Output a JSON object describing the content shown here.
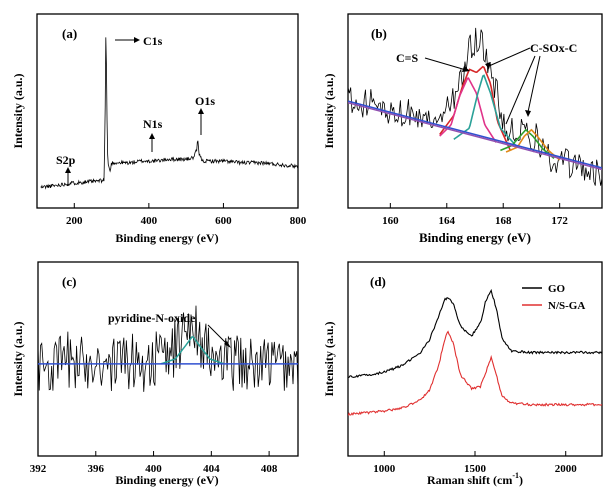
{
  "colors": {
    "axis": "#000000",
    "raw": "#000000",
    "fit_pink": "#e0338a",
    "fit_red": "#d62728",
    "fit_teal": "#2aa198",
    "fit_green": "#2ca02c",
    "fit_orange": "#e08a1a",
    "baseline_blue": "#3050d0",
    "baseline_purple": "#9050b0",
    "go": "#000000",
    "nsga": "#e03030"
  },
  "chart_data": [
    {
      "id": "a",
      "type": "line",
      "panel_label": "(a)",
      "xlabel": "Binding energy (eV)",
      "ylabel": "Intensity (a.u.)",
      "xlim": [
        100,
        800
      ],
      "xticks": [
        "200",
        "400",
        "600",
        "800"
      ],
      "xtick_values": [
        200,
        400,
        600,
        800
      ],
      "ylim": [
        0,
        100
      ],
      "series": [
        {
          "x": [
            110,
            150,
            180,
            200,
            230,
            260,
            280,
            283,
            285,
            287,
            289,
            292,
            296,
            300,
            320,
            350,
            380,
            400,
            420,
            450,
            480,
            500,
            520,
            528,
            531,
            534,
            538,
            545,
            560,
            600,
            650,
            700,
            750,
            800
          ],
          "y": [
            3,
            4,
            5,
            5.5,
            6,
            6.5,
            7,
            50,
            100,
            55,
            22,
            15,
            12,
            17,
            17,
            17,
            18,
            18,
            18,
            19,
            19,
            19,
            20,
            24,
            30,
            23,
            20,
            18,
            18,
            18,
            17,
            17,
            16,
            15
          ]
        }
      ],
      "annotations": [
        {
          "label": "C1s",
          "x": 285,
          "y": 100
        },
        {
          "label": "N1s",
          "x": 400,
          "y": 18
        },
        {
          "label": "O1s",
          "x": 531,
          "y": 30
        },
        {
          "label": "S2p",
          "x": 165,
          "y": 5
        }
      ]
    },
    {
      "id": "b",
      "type": "line",
      "panel_label": "(b)",
      "xlabel": "Binding energy (eV)",
      "ylabel": "Intensity (a.u.)",
      "xlim": [
        157,
        175
      ],
      "xticks": [
        "160",
        "164",
        "168",
        "172"
      ],
      "xtick_values": [
        160,
        164,
        168,
        172
      ],
      "ylim": [
        0,
        100
      ],
      "series": [
        {
          "kind": "raw",
          "x": [
            157,
            159,
            161,
            163,
            164,
            165,
            165.7,
            166.4,
            167.2,
            168,
            168.8,
            169.4,
            170.2,
            171,
            172,
            173,
            174,
            175
          ],
          "y": [
            56,
            52,
            48,
            44,
            50,
            68,
            90,
            93,
            70,
            44,
            34,
            38,
            33,
            22,
            16,
            14,
            12,
            10
          ]
        },
        {
          "kind": "fit",
          "x": [
            163.5,
            164.5,
            165.1,
            165.6,
            166.1,
            166.6,
            167.1,
            167.6,
            168.5
          ],
          "y": [
            34,
            46,
            64,
            75,
            73,
            77,
            66,
            42,
            24
          ]
        },
        {
          "kind": "fit",
          "x": [
            163.5,
            164.3,
            164.9,
            165.5,
            166.1,
            166.7,
            167.5
          ],
          "y": [
            33,
            40,
            58,
            70,
            60,
            40,
            29
          ]
        },
        {
          "kind": "fit",
          "x": [
            164.5,
            165.6,
            166.2,
            166.6,
            167.1,
            167.8,
            169
          ],
          "y": [
            31,
            38,
            60,
            72,
            60,
            38,
            26
          ]
        },
        {
          "kind": "fit",
          "x": [
            167.8,
            168.6,
            169.2,
            169.6,
            170.1,
            170.8,
            171.6
          ],
          "y": [
            24,
            27,
            33,
            37,
            33,
            25,
            19
          ]
        },
        {
          "kind": "fit",
          "x": [
            168.2,
            169,
            169.5,
            170,
            170.5,
            171.2,
            172
          ],
          "y": [
            23,
            26,
            33,
            37,
            32,
            24,
            18
          ]
        },
        {
          "kind": "baseline",
          "x": [
            157,
            175
          ],
          "y": [
            55,
            13
          ]
        },
        {
          "kind": "baseline",
          "x": [
            157,
            175
          ],
          "y": [
            54,
            12
          ]
        }
      ],
      "annotations": [
        {
          "label": "C=S",
          "x": 165.7,
          "y": 75
        },
        {
          "label": "C-SOx-C",
          "x": 169.5,
          "y": 37
        }
      ]
    },
    {
      "id": "c",
      "type": "line",
      "panel_label": "(c)",
      "xlabel": "Binding energy (eV)",
      "ylabel": "Intensity (a.u.)",
      "xlim": [
        392,
        410
      ],
      "xticks": [
        "392",
        "396",
        "400",
        "404",
        "408"
      ],
      "xtick_values": [
        392,
        396,
        400,
        404,
        408
      ],
      "ylim": [
        0,
        100
      ],
      "series": [
        {
          "kind": "raw",
          "x": [
            392,
            393,
            394,
            395,
            396,
            397,
            398,
            399,
            400,
            401,
            402,
            402.5,
            403,
            403.5,
            404,
            405,
            406,
            407,
            408,
            409,
            410
          ],
          "y": [
            48,
            44,
            50,
            46,
            52,
            45,
            50,
            47,
            49,
            52,
            62,
            75,
            68,
            58,
            50,
            46,
            50,
            44,
            48,
            46,
            47
          ]
        },
        {
          "kind": "fit",
          "x": [
            400.5,
            401.5,
            402.2,
            402.7,
            403.2,
            403.9,
            404.9
          ],
          "y": [
            47,
            50,
            58,
            64,
            58,
            50,
            47
          ]
        },
        {
          "kind": "baseline",
          "x": [
            392,
            410
          ],
          "y": [
            47,
            47
          ]
        }
      ],
      "annotations": [
        {
          "label": "pyridine-N-oxide",
          "x": 402.7,
          "y": 64
        }
      ]
    },
    {
      "id": "d",
      "type": "line",
      "panel_label": "(d)",
      "xlabel": "Raman shift (cm",
      "xlabel_sup": "-1",
      "xlabel_tail": ")",
      "ylabel": "Intensity (a.u.)",
      "xlim": [
        800,
        2200
      ],
      "xticks": [
        "1000",
        "1500",
        "2000"
      ],
      "xtick_values": [
        1000,
        1500,
        2000
      ],
      "ylim": [
        0,
        100
      ],
      "legend": "top-right",
      "series": [
        {
          "name": "GO",
          "x": [
            800,
            900,
            1000,
            1100,
            1200,
            1250,
            1300,
            1330,
            1350,
            1380,
            1420,
            1480,
            1530,
            1560,
            1590,
            1620,
            1650,
            1700,
            1800,
            1900,
            2000,
            2100,
            2200
          ],
          "y": [
            39,
            40,
            42,
            46,
            54,
            62,
            76,
            86,
            88,
            84,
            70,
            64,
            72,
            86,
            92,
            80,
            62,
            55,
            54,
            54,
            54,
            54,
            54
          ]
        },
        {
          "name": "N/S-GA",
          "x": [
            800,
            900,
            1000,
            1100,
            1200,
            1250,
            1300,
            1330,
            1350,
            1380,
            1420,
            1480,
            1530,
            1560,
            1590,
            1620,
            1650,
            1700,
            1800,
            1900,
            2000,
            2100,
            2200
          ],
          "y": [
            16,
            17,
            18,
            20,
            25,
            31,
            46,
            61,
            67,
            60,
            40,
            32,
            33,
            42,
            51,
            39,
            27,
            23,
            22,
            22,
            22,
            22,
            22
          ]
        }
      ]
    }
  ]
}
